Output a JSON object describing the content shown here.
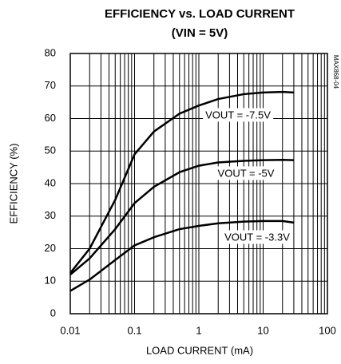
{
  "chart_data": {
    "type": "line",
    "title": "EFFICIENCY vs. LOAD CURRENT",
    "subtitle": "(VIN = 5V)",
    "side_note": "MAX868-04",
    "x_label": "LOAD CURRENT (mA)",
    "y_label": "EFFICIENCY (%)",
    "log_x": true,
    "grid": true,
    "color": "#000000",
    "x": [
      0.01,
      0.02,
      0.05,
      0.1,
      0.2,
      0.5,
      1,
      2,
      5,
      10,
      20,
      30
    ],
    "series": [
      {
        "name": "VOUT = -7.5V",
        "color": "#000000",
        "values": [
          12.5,
          20,
          35,
          49,
          56,
          61.5,
          64,
          66,
          67.5,
          68,
          68.2,
          68
        ]
      },
      {
        "name": "VOUT = -5V",
        "color": "#000000",
        "values": [
          12,
          17,
          26,
          34,
          39,
          43.5,
          45.5,
          46.5,
          47,
          47.2,
          47.3,
          47.2
        ]
      },
      {
        "name": "VOUT = -3.3V",
        "color": "#000000",
        "values": [
          7,
          10.5,
          16.5,
          21,
          23.5,
          26,
          27,
          27.8,
          28.3,
          28.5,
          28.5,
          28
        ]
      }
    ],
    "xlim": [
      0.01,
      100
    ],
    "xticks": [
      0.01,
      0.1,
      1,
      10,
      100
    ],
    "xminorticks": [
      0.02,
      0.03,
      0.04,
      0.05,
      0.06,
      0.07,
      0.08,
      0.09,
      0.2,
      0.3,
      0.4,
      0.5,
      0.6,
      0.7,
      0.8,
      0.9,
      2,
      3,
      4,
      5,
      6,
      7,
      8,
      9,
      20,
      30,
      40,
      50,
      60,
      70,
      80,
      90
    ],
    "ylim": [
      0,
      80
    ],
    "yticks": [
      0,
      10,
      20,
      30,
      40,
      50,
      60,
      70,
      80
    ]
  }
}
